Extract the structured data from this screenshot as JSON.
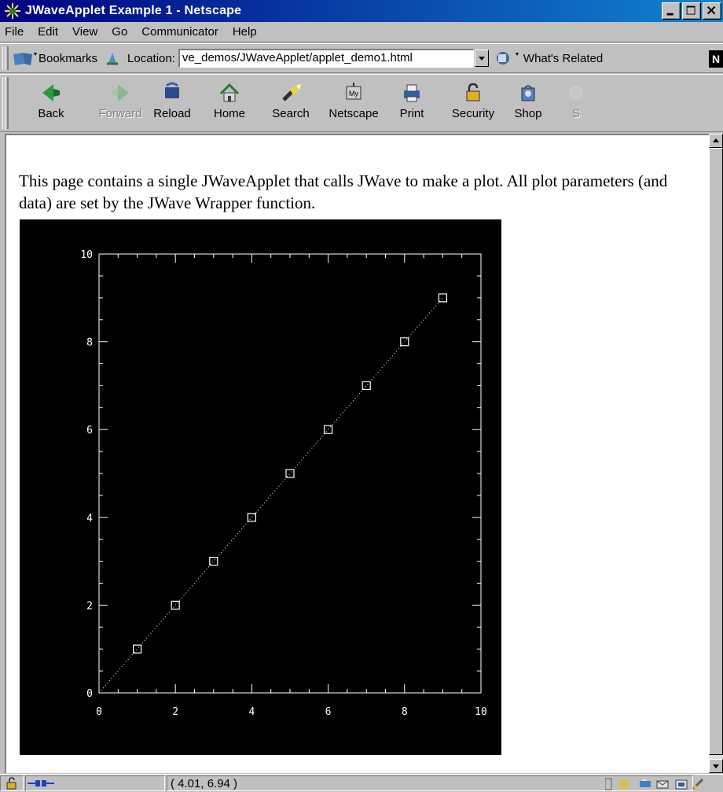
{
  "window": {
    "title": "JWaveApplet Example 1 - Netscape"
  },
  "menu": [
    "File",
    "Edit",
    "View",
    "Go",
    "Communicator",
    "Help"
  ],
  "location_bar": {
    "bookmarks_label": "Bookmarks",
    "location_label": "Location:",
    "url": "ve_demos/JWaveApplet/applet_demo1.html",
    "related_label": "What's Related"
  },
  "toolbar": [
    {
      "label": "Back",
      "icon": "back-arrow-icon",
      "enabled": true
    },
    {
      "label": "Forward",
      "icon": "forward-arrow-icon",
      "enabled": false
    },
    {
      "label": "Reload",
      "icon": "reload-icon",
      "enabled": true
    },
    {
      "label": "Home",
      "icon": "home-icon",
      "enabled": true
    },
    {
      "label": "Search",
      "icon": "search-flashlight-icon",
      "enabled": true
    },
    {
      "label": "Netscape",
      "icon": "my-netscape-icon",
      "enabled": true
    },
    {
      "label": "Print",
      "icon": "printer-icon",
      "enabled": true
    },
    {
      "label": "Security",
      "icon": "padlock-icon",
      "enabled": true
    },
    {
      "label": "Shop",
      "icon": "shopping-bag-icon",
      "enabled": true
    },
    {
      "label": "S",
      "icon": "stop-icon",
      "enabled": true
    }
  ],
  "page": {
    "paragraph": "This page contains a single JWaveApplet that calls JWave to make a plot. All plot parameters (and data) are set by the JWave Wrapper function."
  },
  "chart_data": {
    "type": "line",
    "x": [
      0,
      1,
      2,
      3,
      4,
      5,
      6,
      7,
      8,
      9
    ],
    "y": [
      0,
      1,
      2,
      3,
      4,
      5,
      6,
      7,
      8,
      9
    ],
    "marker": "square",
    "line_style": "dotted",
    "xlim": [
      0,
      10
    ],
    "ylim": [
      0,
      10
    ],
    "x_ticks": [
      "0",
      "2",
      "4",
      "6",
      "8",
      "10"
    ],
    "y_ticks": [
      "0",
      "2",
      "4",
      "6",
      "8",
      "10"
    ],
    "grid": false,
    "title": "",
    "xlabel": "",
    "ylabel": "",
    "colors": {
      "background": "#000000",
      "foreground": "#ffffff"
    }
  },
  "status": {
    "text": "( 4.01, 6.94 )"
  }
}
